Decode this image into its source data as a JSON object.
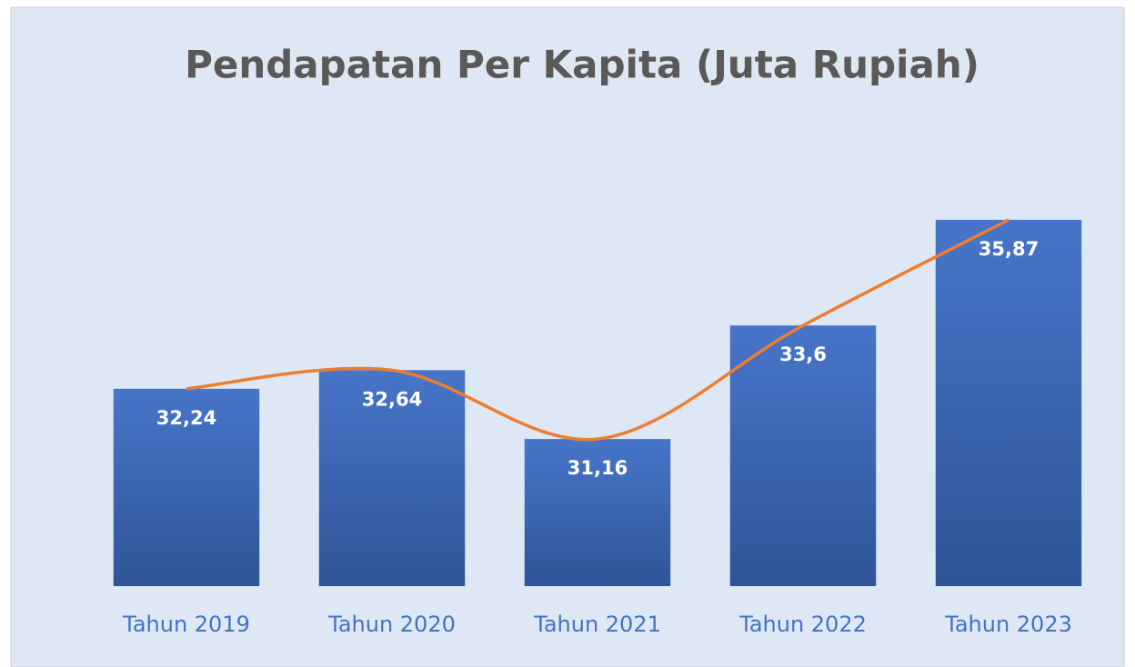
{
  "chart_data": {
    "type": "bar",
    "title": "Pendapatan Per Kapita (Juta Rupiah)",
    "categories": [
      "Tahun 2019",
      "Tahun 2020",
      "Tahun 2021",
      "Tahun 2022",
      "Tahun 2023"
    ],
    "values": [
      32.24,
      32.64,
      31.16,
      33.6,
      35.87
    ],
    "value_labels": [
      "32,24",
      "32,64",
      "31,16",
      "33,6",
      "35,87"
    ],
    "color": "#4472c4",
    "line_color": "#ed7d31",
    "ylim": [
      28,
      37
    ]
  }
}
